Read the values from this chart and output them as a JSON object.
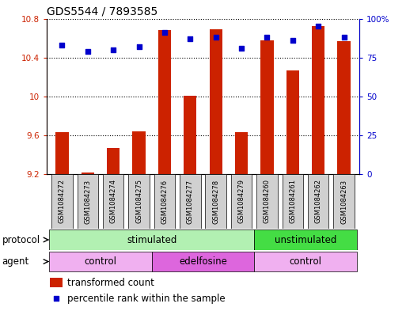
{
  "title": "GDS5544 / 7893585",
  "samples": [
    "GSM1084272",
    "GSM1084273",
    "GSM1084274",
    "GSM1084275",
    "GSM1084276",
    "GSM1084277",
    "GSM1084278",
    "GSM1084279",
    "GSM1084260",
    "GSM1084261",
    "GSM1084262",
    "GSM1084263"
  ],
  "bar_values": [
    9.63,
    9.22,
    9.47,
    9.64,
    10.68,
    10.01,
    10.69,
    9.63,
    10.58,
    10.27,
    10.72,
    10.57
  ],
  "percentile_values": [
    83,
    79,
    80,
    82,
    91,
    87,
    88,
    81,
    88,
    86,
    95,
    88
  ],
  "ylim_left": [
    9.2,
    10.8
  ],
  "ylim_right": [
    0,
    100
  ],
  "yticks_left": [
    9.2,
    9.6,
    10.0,
    10.4,
    10.8
  ],
  "yticks_right": [
    0,
    25,
    50,
    75,
    100
  ],
  "ytick_labels_right": [
    "0",
    "25",
    "50",
    "75",
    "100%"
  ],
  "bar_color": "#cc2200",
  "percentile_color": "#0000cc",
  "bar_width": 0.5,
  "protocol_groups": [
    {
      "label": "stimulated",
      "start": 0,
      "end": 7,
      "color": "#b2f0b2"
    },
    {
      "label": "unstimulated",
      "start": 8,
      "end": 11,
      "color": "#44dd44"
    }
  ],
  "agent_groups": [
    {
      "label": "control",
      "start": 0,
      "end": 3,
      "color": "#f0b0f0"
    },
    {
      "label": "edelfosine",
      "start": 4,
      "end": 7,
      "color": "#dd66dd"
    },
    {
      "label": "control",
      "start": 8,
      "end": 11,
      "color": "#f0b0f0"
    }
  ],
  "protocol_label": "protocol",
  "agent_label": "agent",
  "legend_bar_label": "transformed count",
  "legend_pct_label": "percentile rank within the sample",
  "title_fontsize": 10,
  "tick_fontsize": 7.5,
  "label_fontsize": 8.5,
  "xtick_fontsize": 6.0,
  "sample_box_color": "#d0d0d0"
}
